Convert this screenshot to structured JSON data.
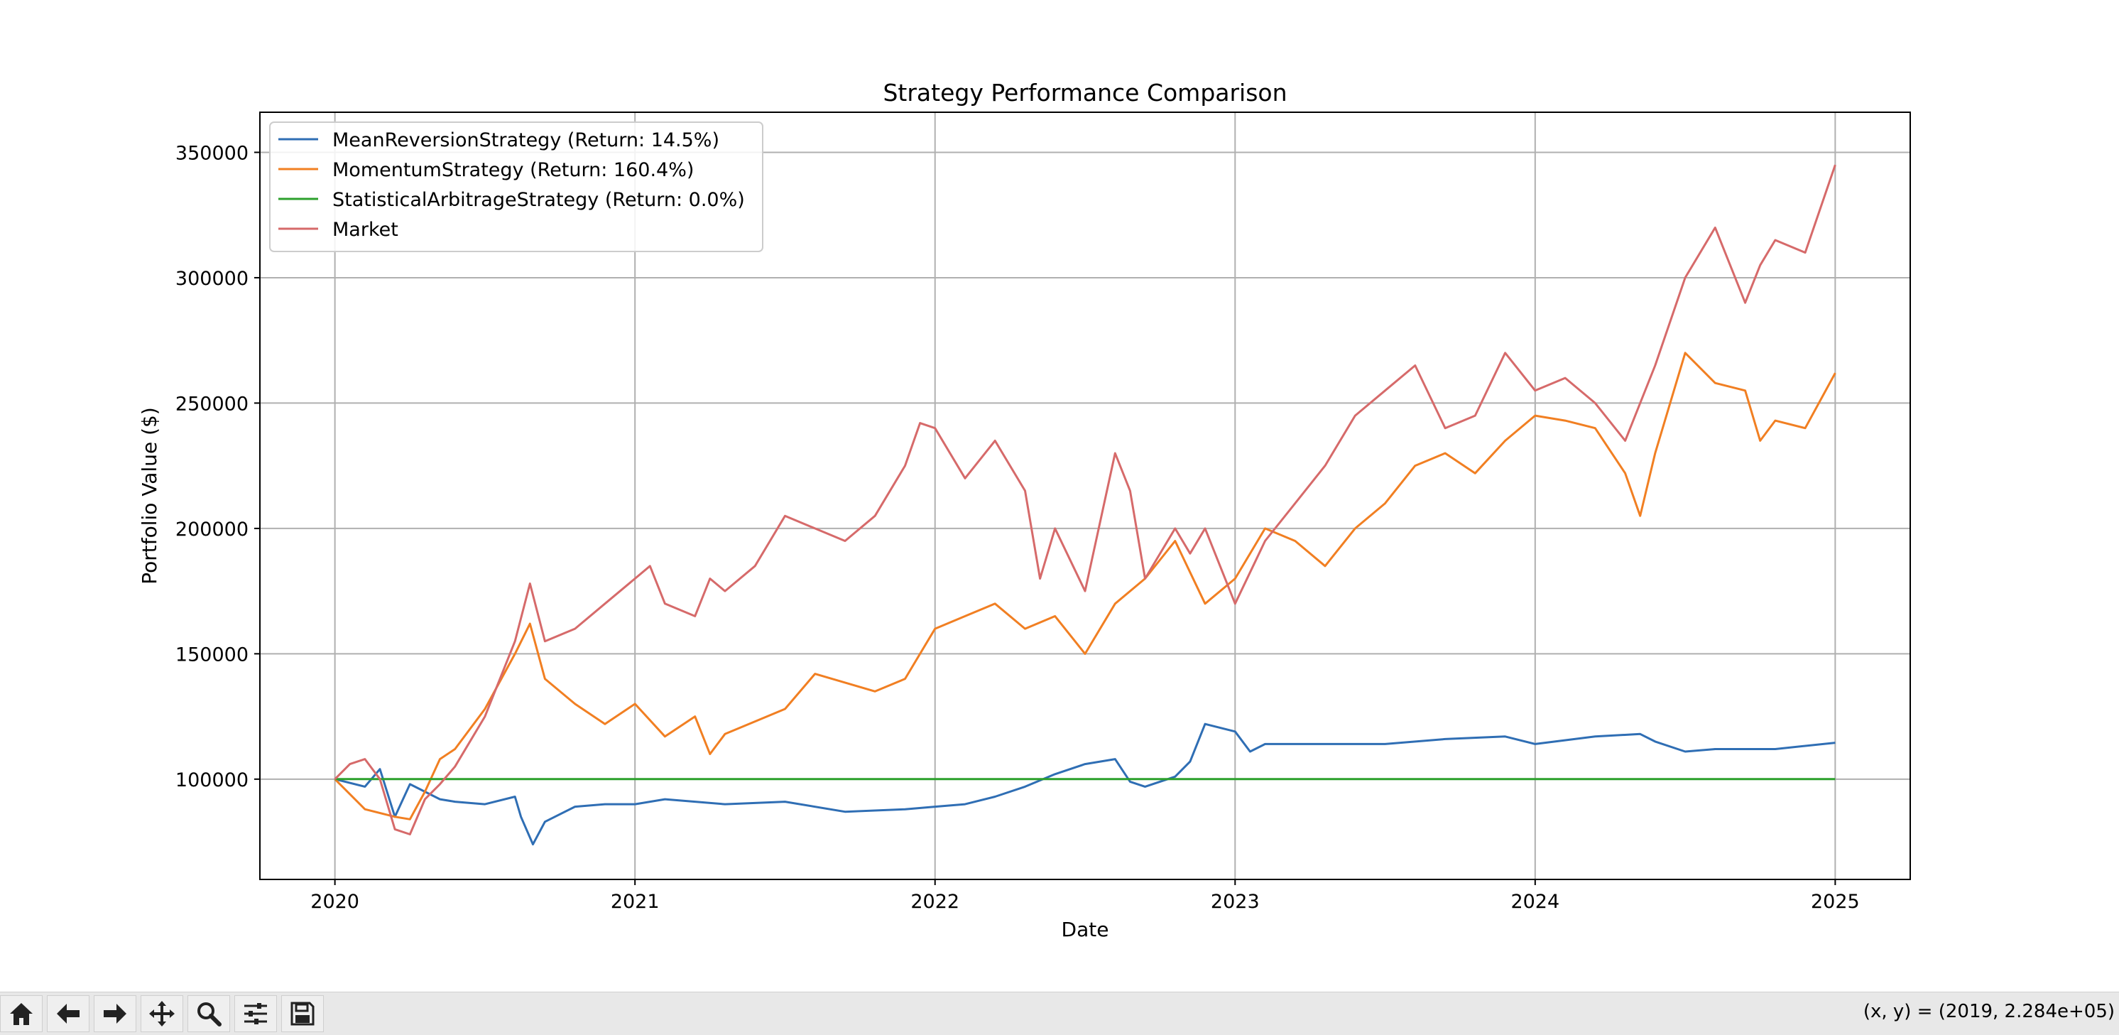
{
  "toolbar": {
    "buttons": [
      {
        "name": "home-icon"
      },
      {
        "name": "back-arrow-icon"
      },
      {
        "name": "forward-arrow-icon"
      },
      {
        "name": "pan-move-icon"
      },
      {
        "name": "zoom-magnifier-icon"
      },
      {
        "name": "configure-subplots-icon"
      },
      {
        "name": "save-disk-icon"
      }
    ],
    "coords_text": "(x, y) = (2019, 2.284e+05)"
  },
  "chart_data": {
    "type": "line",
    "title": "Strategy Performance Comparison",
    "xlabel": "Date",
    "ylabel": "Portfolio Value ($)",
    "xlim": [
      2019.75,
      2025.25
    ],
    "ylim": [
      60000,
      366000
    ],
    "xticks": [
      2020,
      2021,
      2022,
      2023,
      2024,
      2025
    ],
    "xtick_labels": [
      "2020",
      "2021",
      "2022",
      "2023",
      "2024",
      "2025"
    ],
    "yticks": [
      100000,
      150000,
      200000,
      250000,
      300000,
      350000
    ],
    "ytick_labels": [
      "100000",
      "150000",
      "200000",
      "250000",
      "300000",
      "350000"
    ],
    "grid": true,
    "legend_position": "top-left",
    "series": [
      {
        "name": "MeanReversionStrategy (Return: 14.5%)",
        "color": "#2f6eb4",
        "x": [
          2020.0,
          2020.1,
          2020.15,
          2020.2,
          2020.25,
          2020.3,
          2020.35,
          2020.4,
          2020.5,
          2020.6,
          2020.62,
          2020.66,
          2020.7,
          2020.8,
          2020.9,
          2021.0,
          2021.1,
          2021.3,
          2021.5,
          2021.7,
          2021.9,
          2022.0,
          2022.1,
          2022.2,
          2022.3,
          2022.4,
          2022.5,
          2022.6,
          2022.65,
          2022.7,
          2022.8,
          2022.85,
          2022.9,
          2023.0,
          2023.05,
          2023.1,
          2023.3,
          2023.5,
          2023.7,
          2023.9,
          2024.0,
          2024.2,
          2024.35,
          2024.4,
          2024.5,
          2024.6,
          2024.8,
          2025.0
        ],
        "y": [
          100000,
          97000,
          104000,
          85000,
          98000,
          95000,
          92000,
          91000,
          90000,
          93000,
          85000,
          74000,
          83000,
          89000,
          90000,
          90000,
          92000,
          90000,
          91000,
          87000,
          88000,
          89000,
          90000,
          93000,
          97000,
          102000,
          106000,
          108000,
          99000,
          97000,
          101000,
          107000,
          122000,
          119000,
          111000,
          114000,
          114000,
          114000,
          116000,
          117000,
          114000,
          117000,
          118000,
          115000,
          111000,
          112000,
          112000,
          114500
        ]
      },
      {
        "name": "MomentumStrategy (Return: 160.4%)",
        "color": "#f17f22",
        "x": [
          2020.0,
          2020.1,
          2020.2,
          2020.25,
          2020.3,
          2020.35,
          2020.4,
          2020.5,
          2020.6,
          2020.65,
          2020.7,
          2020.8,
          2020.9,
          2021.0,
          2021.1,
          2021.2,
          2021.25,
          2021.3,
          2021.5,
          2021.6,
          2021.8,
          2021.9,
          2022.0,
          2022.1,
          2022.2,
          2022.3,
          2022.4,
          2022.5,
          2022.6,
          2022.7,
          2022.8,
          2022.9,
          2023.0,
          2023.1,
          2023.2,
          2023.3,
          2023.4,
          2023.5,
          2023.6,
          2023.7,
          2023.8,
          2023.9,
          2024.0,
          2024.1,
          2024.2,
          2024.3,
          2024.35,
          2024.4,
          2024.5,
          2024.6,
          2024.7,
          2024.75,
          2024.8,
          2024.9,
          2025.0
        ],
        "y": [
          100000,
          88000,
          85000,
          84000,
          95000,
          108000,
          112000,
          128000,
          150000,
          162000,
          140000,
          130000,
          122000,
          130000,
          117000,
          125000,
          110000,
          118000,
          128000,
          142000,
          135000,
          140000,
          160000,
          165000,
          170000,
          160000,
          165000,
          150000,
          170000,
          180000,
          195000,
          170000,
          180000,
          200000,
          195000,
          185000,
          200000,
          210000,
          225000,
          230000,
          222000,
          235000,
          245000,
          243000,
          240000,
          222000,
          205000,
          230000,
          270000,
          258000,
          255000,
          235000,
          243000,
          240000,
          262000
        ]
      },
      {
        "name": "StatisticalArbitrageStrategy (Return: 0.0%)",
        "color": "#2ca02c",
        "x": [
          2020.0,
          2025.0
        ],
        "y": [
          100000,
          100000
        ]
      },
      {
        "name": "Market",
        "color": "#d66a6a",
        "x": [
          2020.0,
          2020.05,
          2020.1,
          2020.15,
          2020.2,
          2020.25,
          2020.3,
          2020.35,
          2020.4,
          2020.5,
          2020.6,
          2020.65,
          2020.7,
          2020.8,
          2020.9,
          2021.0,
          2021.05,
          2021.1,
          2021.2,
          2021.25,
          2021.3,
          2021.4,
          2021.5,
          2021.6,
          2021.7,
          2021.8,
          2021.9,
          2021.95,
          2022.0,
          2022.1,
          2022.2,
          2022.3,
          2022.35,
          2022.4,
          2022.5,
          2022.6,
          2022.65,
          2022.7,
          2022.8,
          2022.85,
          2022.9,
          2023.0,
          2023.1,
          2023.2,
          2023.3,
          2023.4,
          2023.5,
          2023.6,
          2023.7,
          2023.8,
          2023.9,
          2024.0,
          2024.1,
          2024.2,
          2024.3,
          2024.4,
          2024.5,
          2024.6,
          2024.7,
          2024.75,
          2024.8,
          2024.9,
          2025.0
        ],
        "y": [
          100000,
          106000,
          108000,
          100000,
          80000,
          78000,
          92000,
          98000,
          105000,
          125000,
          155000,
          178000,
          155000,
          160000,
          170000,
          180000,
          185000,
          170000,
          165000,
          180000,
          175000,
          185000,
          205000,
          200000,
          195000,
          205000,
          225000,
          242000,
          240000,
          220000,
          235000,
          215000,
          180000,
          200000,
          175000,
          230000,
          215000,
          180000,
          200000,
          190000,
          200000,
          170000,
          195000,
          210000,
          225000,
          245000,
          255000,
          265000,
          240000,
          245000,
          270000,
          255000,
          260000,
          250000,
          235000,
          265000,
          300000,
          320000,
          290000,
          305000,
          315000,
          310000,
          345000
        ]
      }
    ]
  }
}
